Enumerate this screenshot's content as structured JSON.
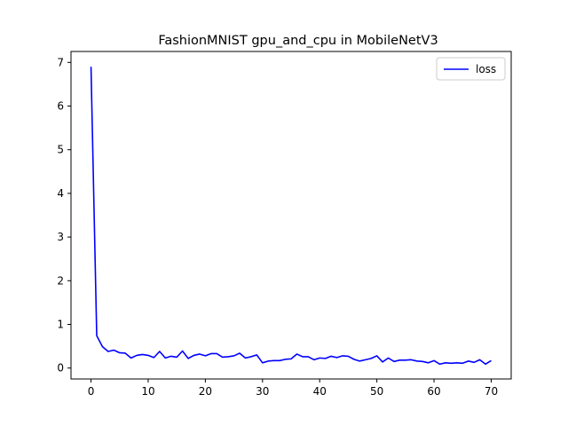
{
  "chart_data": {
    "type": "line",
    "title": "FashionMNIST gpu_and_cpu in MobileNetV3",
    "xlabel": "",
    "ylabel": "",
    "xlim": [
      -3.5,
      73.5
    ],
    "ylim": [
      -0.25,
      7.25
    ],
    "xticks": [
      0,
      10,
      20,
      30,
      40,
      50,
      60,
      70
    ],
    "yticks": [
      0,
      1,
      2,
      3,
      4,
      5,
      6,
      7
    ],
    "grid": false,
    "legend": {
      "position": "top-right",
      "entries": [
        "loss"
      ]
    },
    "colors": {
      "loss": "#0000ff"
    },
    "series": [
      {
        "name": "loss",
        "x": [
          0,
          1,
          2,
          3,
          4,
          5,
          6,
          7,
          8,
          9,
          10,
          11,
          12,
          13,
          14,
          15,
          16,
          17,
          18,
          19,
          20,
          21,
          22,
          23,
          24,
          25,
          26,
          27,
          28,
          29,
          30,
          31,
          32,
          33,
          34,
          35,
          36,
          37,
          38,
          39,
          40,
          41,
          42,
          43,
          44,
          45,
          46,
          47,
          48,
          49,
          50,
          51,
          52,
          53,
          54,
          55,
          56,
          57,
          58,
          59,
          60,
          61,
          62,
          63,
          64,
          65,
          66,
          67,
          68,
          69,
          70
        ],
        "values": [
          6.9,
          0.74,
          0.49,
          0.38,
          0.41,
          0.35,
          0.34,
          0.23,
          0.29,
          0.31,
          0.29,
          0.24,
          0.38,
          0.23,
          0.27,
          0.25,
          0.39,
          0.22,
          0.29,
          0.32,
          0.28,
          0.33,
          0.33,
          0.25,
          0.26,
          0.28,
          0.34,
          0.23,
          0.26,
          0.3,
          0.12,
          0.16,
          0.17,
          0.17,
          0.2,
          0.21,
          0.32,
          0.26,
          0.26,
          0.19,
          0.23,
          0.22,
          0.27,
          0.24,
          0.28,
          0.27,
          0.2,
          0.16,
          0.19,
          0.22,
          0.28,
          0.14,
          0.23,
          0.15,
          0.18,
          0.18,
          0.19,
          0.16,
          0.15,
          0.12,
          0.17,
          0.09,
          0.12,
          0.11,
          0.12,
          0.11,
          0.16,
          0.13,
          0.19,
          0.09,
          0.17
        ]
      }
    ]
  }
}
